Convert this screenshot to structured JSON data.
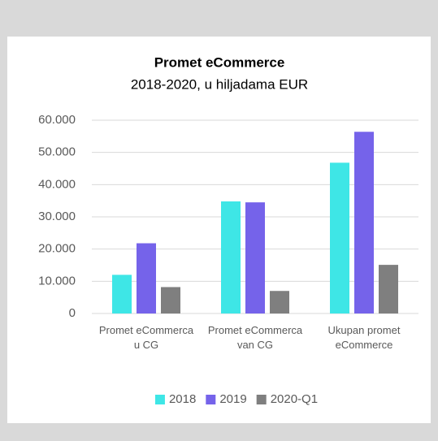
{
  "chart_data": {
    "type": "bar",
    "title": "Promet eCommerce",
    "subtitle": "2018-2020, u hiljadama EUR",
    "categories": [
      "Promet eCommerca u CG",
      "Promet eCommerca van CG",
      "Ukupan promet eCommerce"
    ],
    "series": [
      {
        "name": "2018",
        "color": "#3ee6e6",
        "values": [
          12000,
          34800,
          46800
        ]
      },
      {
        "name": "2019",
        "color": "#7563ea",
        "values": [
          21800,
          34500,
          56400
        ]
      },
      {
        "name": "2020-Q1",
        "color": "#7f7f7f",
        "values": [
          8200,
          7000,
          15100
        ]
      }
    ],
    "ylim": [
      0,
      60000
    ],
    "yticks": [
      0,
      {
        "value": 10000,
        "label": "10.000"
      },
      {
        "value": 20000,
        "label": "20.000"
      },
      {
        "value": 30000,
        "label": "30.000"
      },
      {
        "value": 40000,
        "label": "40.000"
      },
      {
        "value": 50000,
        "label": "50.000"
      },
      {
        "value": 60000,
        "label": "60.000"
      }
    ],
    "grid": true,
    "legend": "bottom"
  }
}
